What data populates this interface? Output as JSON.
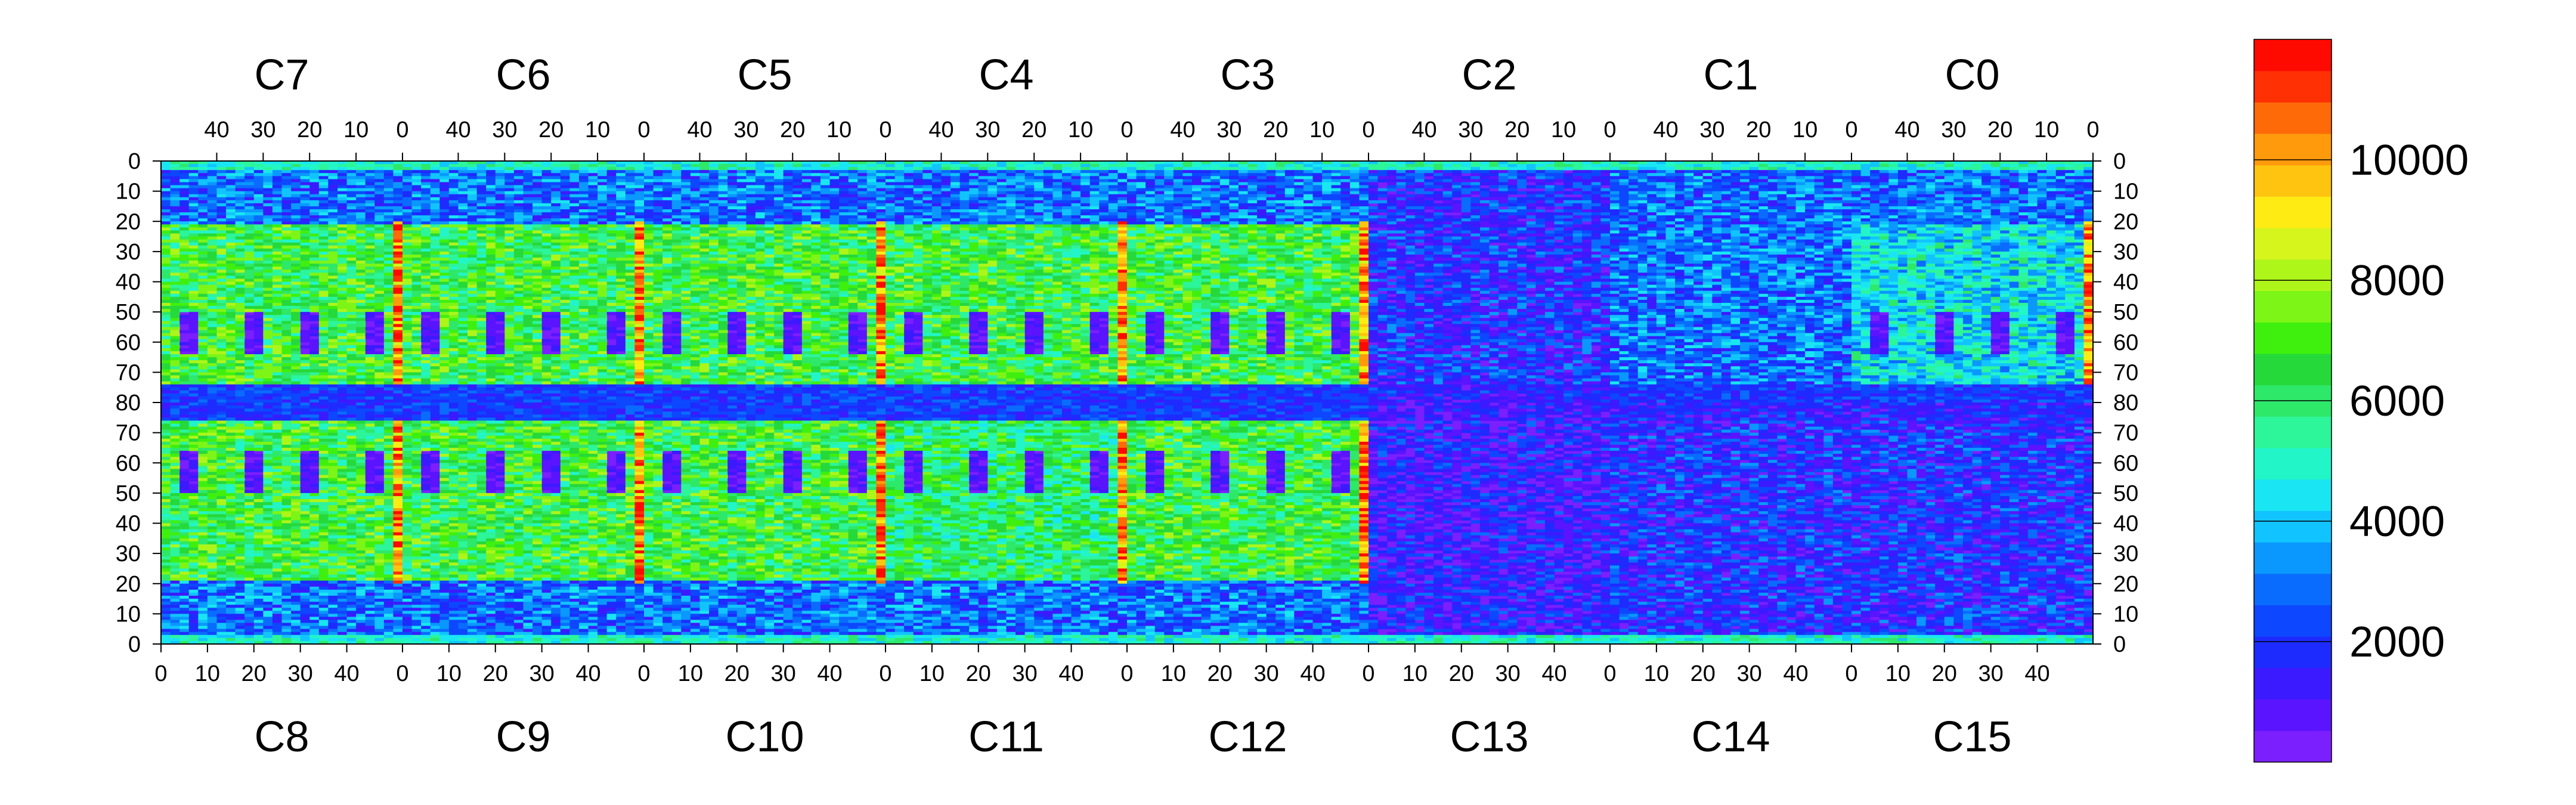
{
  "chart_data": {
    "type": "heatmap",
    "description_type": "hitmap",
    "top_chips": [
      "C7",
      "C6",
      "C5",
      "C4",
      "C3",
      "C2",
      "C1",
      "C0"
    ],
    "bottom_chips": [
      "C8",
      "C9",
      "C10",
      "C11",
      "C12",
      "C13",
      "C14",
      "C15"
    ],
    "top_axis_tick_labels": [
      "40",
      "30",
      "20",
      "10",
      "0"
    ],
    "bottom_axis_tick_labels": [
      "0",
      "10",
      "20",
      "30",
      "40"
    ],
    "left_axis_tick_labels": [
      "0",
      "10",
      "20",
      "30",
      "40",
      "50",
      "60",
      "70",
      "80",
      "70",
      "60",
      "50",
      "40",
      "30",
      "20",
      "10",
      "0"
    ],
    "right_axis_tick_labels": [
      "0",
      "10",
      "20",
      "30",
      "40",
      "50",
      "60",
      "70",
      "80",
      "70",
      "60",
      "50",
      "40",
      "30",
      "20",
      "10",
      "0"
    ],
    "chip_columns": 52,
    "chip_rows": 80,
    "zlim": [
      0,
      12000
    ],
    "colorbar_labels": [
      "10000",
      "8000",
      "6000",
      "4000",
      "2000"
    ],
    "colorbar_values": [
      10000,
      8000,
      6000,
      4000,
      2000
    ],
    "palette": [
      "#7b1fff",
      "#5a14ff",
      "#3c1aff",
      "#1e2bff",
      "#0d47ff",
      "#0a6cff",
      "#0a98ff",
      "#11c4ff",
      "#19e6f2",
      "#22f5c8",
      "#2cf59a",
      "#2ee86a",
      "#26d93a",
      "#3ff00f",
      "#7df516",
      "#aef51a",
      "#d6f51c",
      "#ffeb14",
      "#ffc410",
      "#ff9a0c",
      "#ff6a08",
      "#ff3004",
      "#ff0a00"
    ],
    "chip_mean_levels": {
      "C0": 8,
      "C1": 5,
      "C2": 3,
      "C3": 12,
      "C4": 12,
      "C5": 12,
      "C6": 12,
      "C7": 12,
      "C8": 12,
      "C9": 12,
      "C10": 12,
      "C11": 11,
      "C12": 12,
      "C13": 2,
      "C14": 3,
      "C15": 3
    },
    "grid": false
  }
}
